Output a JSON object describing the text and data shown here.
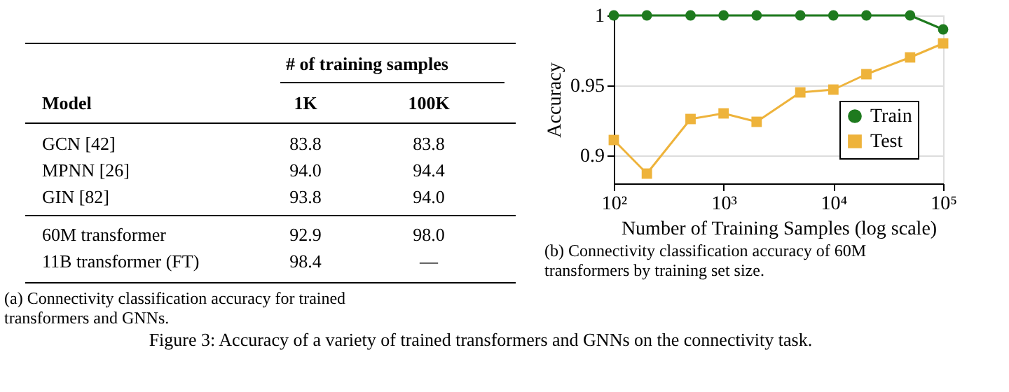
{
  "chart_data": [
    {
      "type": "other",
      "xlabel": "# of training samples",
      "ylabel": "Model",
      "categories": [
        "1K",
        "100K"
      ],
      "y_categories": [
        "GCN [42]",
        "MPNN [26]",
        "GIN [82]",
        "60M transformer",
        "11B transformer (FT)"
      ],
      "cell_labels": [
        [
          "83.8",
          "83.8"
        ],
        [
          "94.0",
          "94.4"
        ],
        [
          "93.8",
          "94.0"
        ],
        [
          "92.9",
          "98.0"
        ],
        [
          "98.4",
          "—"
        ]
      ],
      "annotations": [
        "(a) Connectivity classification accuracy for trained transformers and GNNs."
      ]
    },
    {
      "type": "line",
      "xlabel": "Number of Training Samples (log scale)",
      "ylabel": "Accuracy",
      "x": [
        100,
        200,
        500,
        1000,
        2000,
        5000,
        10000,
        20000,
        50000,
        100000
      ],
      "series": [
        {
          "name": "Train",
          "color": "#1e7a1e",
          "marker": "circle",
          "values": [
            1,
            1,
            1,
            1,
            1,
            1,
            1,
            1,
            1,
            0.99
          ]
        },
        {
          "name": "Test",
          "color": "#eeb33b",
          "marker": "square",
          "values": [
            0.911,
            0.887,
            0.926,
            0.93,
            0.924,
            0.945,
            0.947,
            0.958,
            0.97,
            0.98
          ]
        }
      ],
      "log": "x",
      "xlim": [
        100,
        100000
      ],
      "xticks": [
        {
          "value": 100,
          "label": "10²"
        },
        {
          "value": 1000,
          "label": "10³"
        },
        {
          "value": 10000,
          "label": "10⁴"
        },
        {
          "value": 100000,
          "label": "10⁵"
        }
      ],
      "ylim": [
        0.88,
        1
      ],
      "yticks": [
        0.9,
        0.95,
        1
      ],
      "grid": "y",
      "legend": "bottom right",
      "annotations": [
        "(b) Connectivity classification accuracy of 60M transformers by training set size.",
        "Figure 3: Accuracy of a variety of trained transformers and GNNs on the connectivity task."
      ]
    }
  ]
}
